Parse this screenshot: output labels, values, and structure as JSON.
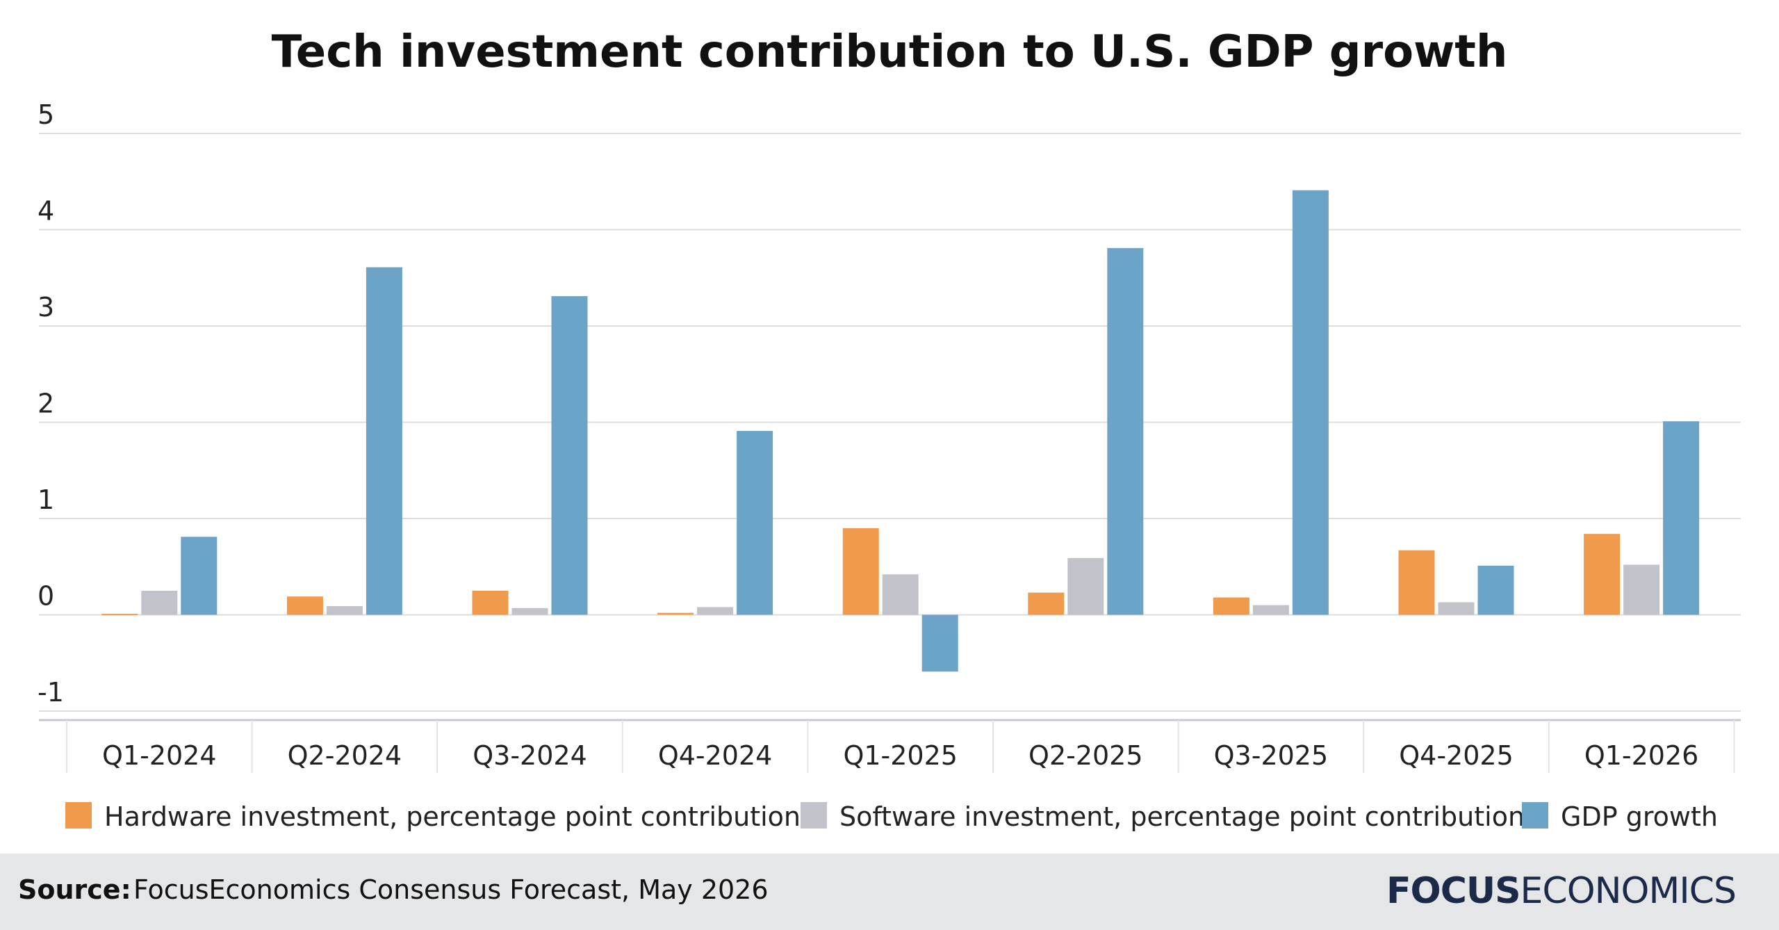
{
  "colors": {
    "hardware": "#ef9a4c",
    "software": "#c2c2ca",
    "gdp": "#6ba4c6",
    "grid": "#dddddd",
    "footer_bg": "#e5e6e8",
    "logo": "#1c2a4a"
  },
  "chart_data": {
    "type": "bar",
    "title": "Tech investment contribution to U.S. GDP growth",
    "xlabel": "",
    "ylabel": "",
    "ylim": [
      -1,
      5
    ],
    "yticks": [
      "5",
      "4",
      "3",
      "2",
      "1",
      "0",
      "-1"
    ],
    "ytick_values": [
      5,
      4,
      3,
      2,
      1,
      0,
      -1
    ],
    "grid": true,
    "legend_position": "bottom",
    "categories": [
      "Q1-2024",
      "Q2-2024",
      "Q3-2024",
      "Q4-2024",
      "Q1-2025",
      "Q2-2025",
      "Q3-2025",
      "Q4-2025",
      "Q1-2026"
    ],
    "series": [
      {
        "name": "Hardware investment, percentage point contribution",
        "color": "#ef9a4c",
        "values": [
          0.01,
          0.19,
          0.25,
          0.02,
          0.9,
          0.23,
          0.18,
          0.67,
          0.84
        ]
      },
      {
        "name": "Software investment, percentage point contribution",
        "color": "#c2c2ca",
        "values": [
          0.25,
          0.09,
          0.07,
          0.08,
          0.42,
          0.59,
          0.1,
          0.13,
          0.52
        ]
      },
      {
        "name": "GDP growth",
        "color": "#6ba4c6",
        "values": [
          0.81,
          3.61,
          3.31,
          1.91,
          -0.59,
          3.81,
          4.41,
          0.51,
          2.01
        ]
      }
    ]
  },
  "footer": {
    "source_label": "Source:",
    "source_text": "FocusEconomics Consensus Forecast, May 2026",
    "logo_bold": "FOCUS",
    "logo_light": "ECONOMICS"
  }
}
